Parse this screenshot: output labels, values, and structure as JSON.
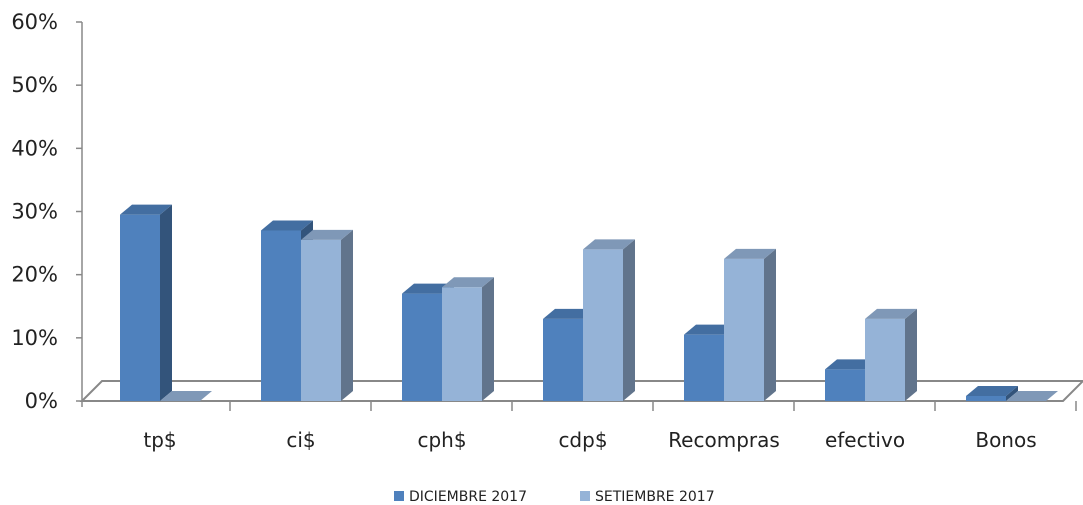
{
  "chart_data": {
    "type": "bar",
    "categories": [
      "tp$",
      "ci$",
      "cph$",
      "cdp$",
      "Recompras",
      "efectivo",
      "Bonos"
    ],
    "series": [
      {
        "name": "DICIEMBRE 2017",
        "values": [
          29.5,
          27,
          17,
          13,
          10.5,
          5,
          0.8
        ],
        "color": "#4f81bd"
      },
      {
        "name": "SETIEMBRE 2017",
        "values": [
          0,
          25.5,
          18,
          24,
          22.5,
          13,
          0
        ],
        "color": "#95b3d7"
      }
    ],
    "y_ticks": [
      "0%",
      "10%",
      "20%",
      "30%",
      "40%",
      "50%",
      "60%"
    ],
    "ylim": [
      0,
      60
    ],
    "grid": false,
    "legend_position": "bottom",
    "style": "3d-clustered-column"
  }
}
